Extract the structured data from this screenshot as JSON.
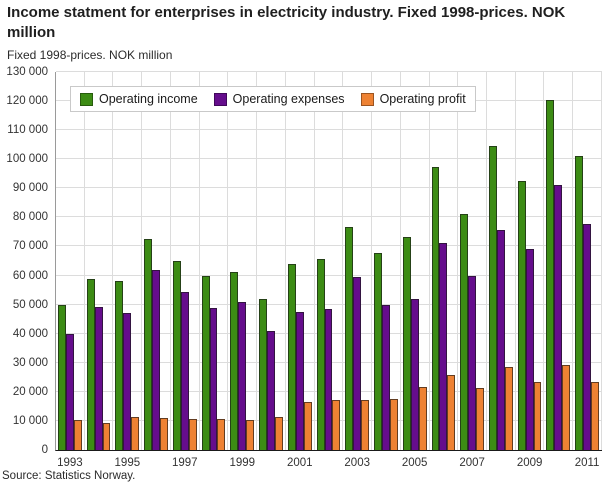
{
  "header": {
    "title": "Income statment for enterprises in electricity industry. Fixed 1998-prices. NOK million",
    "subtitle": "Fixed 1998-prices. NOK million"
  },
  "footer": {
    "source": "Source: Statistics Norway."
  },
  "colors": {
    "income": "#3c8c14",
    "expenses": "#650d8c",
    "profit": "#ee8233",
    "grid": "#dcdcdc",
    "axis": "#1a1a1a"
  },
  "chart_data": {
    "type": "bar",
    "title": "Income statment for enterprises in electricity industry. Fixed 1998-prices. NOK million",
    "subtitle": "Fixed 1998-prices. NOK million",
    "xlabel": "",
    "ylabel": "NOK million",
    "ylim": [
      0,
      130000
    ],
    "ytick_step": 10000,
    "grid": true,
    "legend_position": "top-left",
    "categories": [
      1993,
      1994,
      1995,
      1996,
      1997,
      1998,
      1999,
      2000,
      2001,
      2002,
      2003,
      2004,
      2005,
      2006,
      2007,
      2008,
      2009,
      2010,
      2011
    ],
    "xtick_labels_shown": [
      "1993",
      "1995",
      "1997",
      "1999",
      "2001",
      "2003",
      "2005",
      "2007",
      "2009",
      "2011"
    ],
    "series": [
      {
        "name": "Operating income",
        "color": "#3c8c14",
        "values": [
          49900,
          58700,
          58100,
          72600,
          65000,
          59700,
          61300,
          52000,
          64000,
          65600,
          76600,
          67700,
          73400,
          97200,
          81300,
          104600,
          92500,
          120500,
          101100
        ]
      },
      {
        "name": "Operating expenses",
        "color": "#650d8c",
        "values": [
          39800,
          49200,
          47000,
          62000,
          54300,
          48700,
          50800,
          40800,
          47500,
          48400,
          59400,
          49900,
          51900,
          71200,
          59800,
          75800,
          69000,
          91300,
          77700
        ]
      },
      {
        "name": "Operating profit",
        "color": "#ee8233",
        "values": [
          10300,
          9300,
          11200,
          11000,
          10700,
          10600,
          10300,
          11200,
          16500,
          17200,
          17200,
          17500,
          21600,
          25900,
          21200,
          28400,
          23400,
          29100,
          23300
        ]
      }
    ]
  }
}
